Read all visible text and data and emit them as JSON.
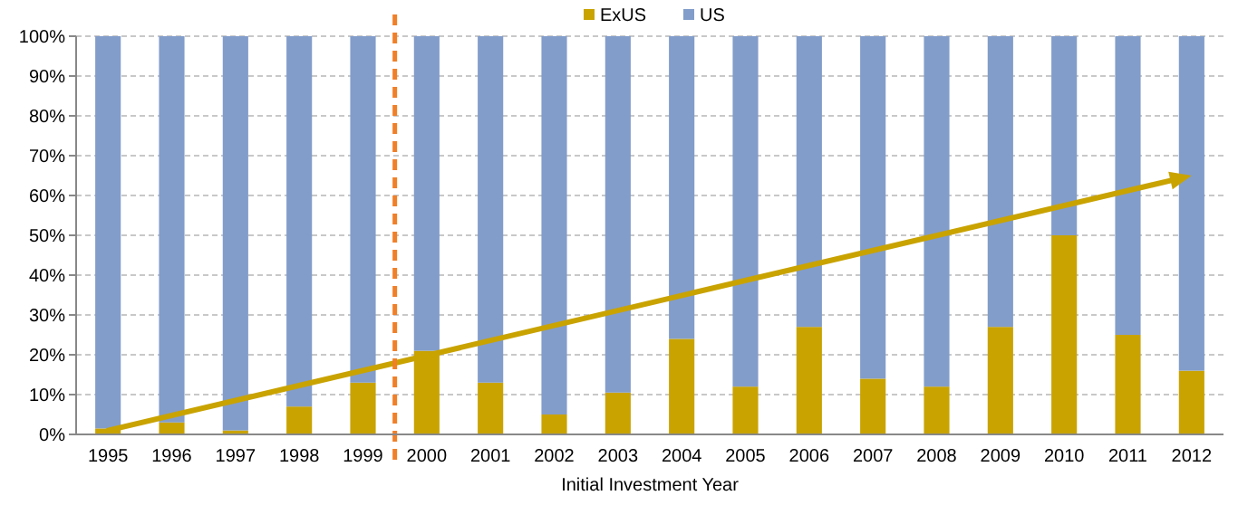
{
  "chart_data": {
    "type": "bar",
    "stacked": true,
    "xlabel": "Initial Investment Year",
    "categories": [
      "1995",
      "1996",
      "1997",
      "1998",
      "1999",
      "2000",
      "2001",
      "2002",
      "2003",
      "2004",
      "2005",
      "2006",
      "2007",
      "2008",
      "2009",
      "2010",
      "2011",
      "2012"
    ],
    "series": [
      {
        "name": "ExUS",
        "color": "#c9a300",
        "values": [
          1.5,
          3,
          1,
          7,
          13,
          21,
          13,
          5,
          10.5,
          24,
          12,
          27,
          14,
          12,
          27,
          50,
          25,
          16
        ]
      },
      {
        "name": "US",
        "color": "#829dca",
        "values": [
          98.5,
          97,
          99,
          93,
          87,
          79,
          87,
          95,
          89.5,
          76,
          88,
          73,
          86,
          88,
          73,
          50,
          75,
          84
        ]
      }
    ],
    "ylim": [
      0,
      100
    ],
    "yticks": [
      {
        "value": 0,
        "label": "0%"
      },
      {
        "value": 10,
        "label": "10%"
      },
      {
        "value": 20,
        "label": "20%"
      },
      {
        "value": 30,
        "label": "30%"
      },
      {
        "value": 40,
        "label": "40%"
      },
      {
        "value": 50,
        "label": "50%"
      },
      {
        "value": 60,
        "label": "60%"
      },
      {
        "value": 70,
        "label": "70%"
      },
      {
        "value": 80,
        "label": "80%"
      },
      {
        "value": 90,
        "label": "90%"
      },
      {
        "value": 100,
        "label": "100%"
      }
    ],
    "grid": "y",
    "legend": "top",
    "ref_lines": [
      {
        "axis": "x",
        "value": "2000",
        "color": "#f07f28",
        "line_style": "dashed"
      }
    ]
  }
}
